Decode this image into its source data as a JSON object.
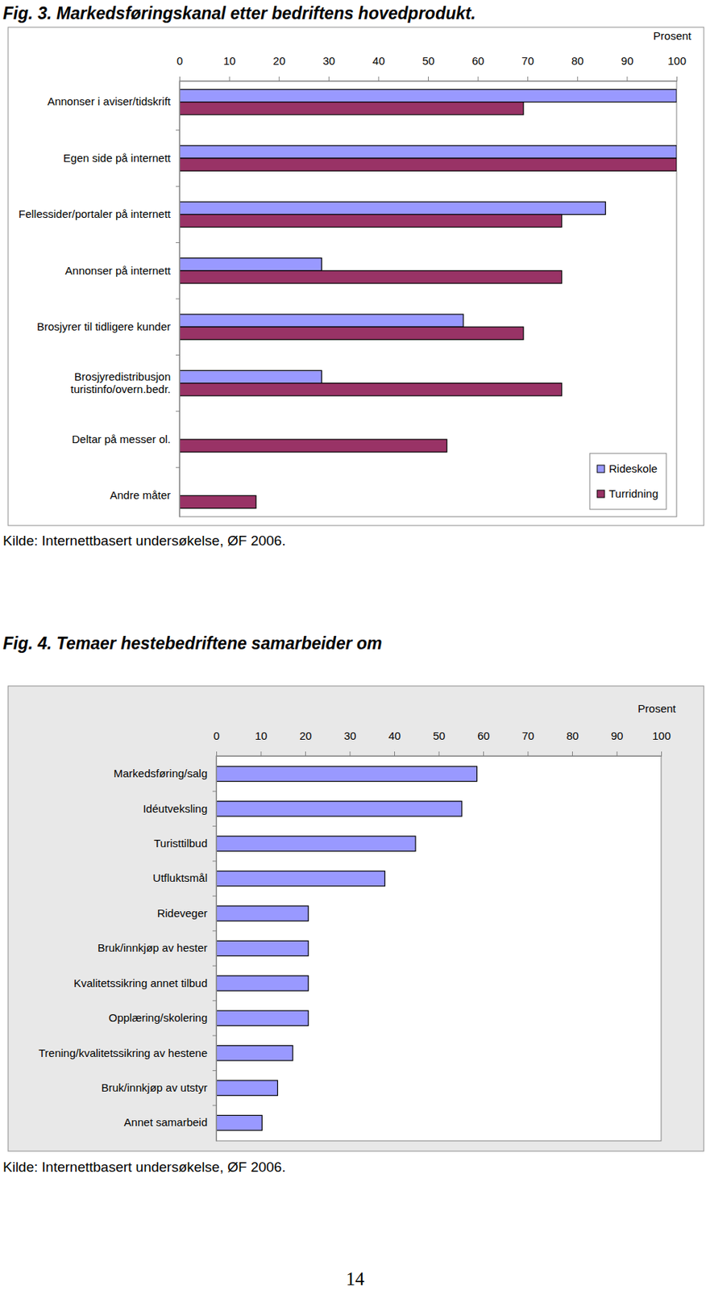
{
  "page_number": "14",
  "chart_data": [
    {
      "type": "bar",
      "title": "Fig. 3.  Markedsføringskanal etter bedriftens hovedprodukt.",
      "xlabel": "Prosent",
      "source": "Kilde: Internettbasert undersøkelse, ØF 2006.",
      "orientation": "horizontal",
      "categories": [
        "Annonser i aviser/tidskrift",
        "Egen side på internett",
        "Fellessider/portaler på internett",
        "Annonser på internett",
        "Brosjyrer til tidligere kunder",
        "Brosjyredistribusjon turistinfo/overn.bedr.",
        "Deltar på messer ol.",
        "Andre måter"
      ],
      "series": [
        {
          "name": "Rideskole",
          "color": "#9999ff",
          "values": [
            100,
            100,
            85.7,
            28.6,
            57.1,
            28.6,
            0,
            0
          ]
        },
        {
          "name": "Turridning",
          "color": "#993366",
          "values": [
            69.2,
            100,
            76.9,
            76.9,
            69.2,
            76.9,
            53.8,
            15.4
          ]
        }
      ],
      "xlim": [
        0,
        100
      ],
      "xticks": [
        0,
        10,
        20,
        30,
        40,
        50,
        60,
        70,
        80,
        90,
        100
      ],
      "grid": false,
      "legend": "lower right"
    },
    {
      "type": "bar",
      "title": "Fig. 4.  Temaer hestebedriftene samarbeider om",
      "xlabel": "Prosent",
      "source": "Kilde: Internettbasert undersøkelse, ØF 2006.",
      "orientation": "horizontal",
      "categories": [
        "Markedsføring/salg",
        "Idéutveksling",
        "Turisttilbud",
        "Utfluktsmål",
        "Rideveger",
        "Bruk/innkjøp av hester",
        "Kvalitetssikring annet tilbud",
        "Opplæring/skolering",
        "Trening/kvalitetssikring av hestene",
        "Bruk/innkjøp av utstyr",
        "Annet samarbeid"
      ],
      "values": [
        58.6,
        55.2,
        44.8,
        37.9,
        20.7,
        20.7,
        20.7,
        20.7,
        17.2,
        13.8,
        10.3
      ],
      "color": "#9999ff",
      "xlim": [
        0,
        100
      ],
      "xticks": [
        0,
        10,
        20,
        30,
        40,
        50,
        60,
        70,
        80,
        90,
        100
      ],
      "grid": false
    }
  ]
}
